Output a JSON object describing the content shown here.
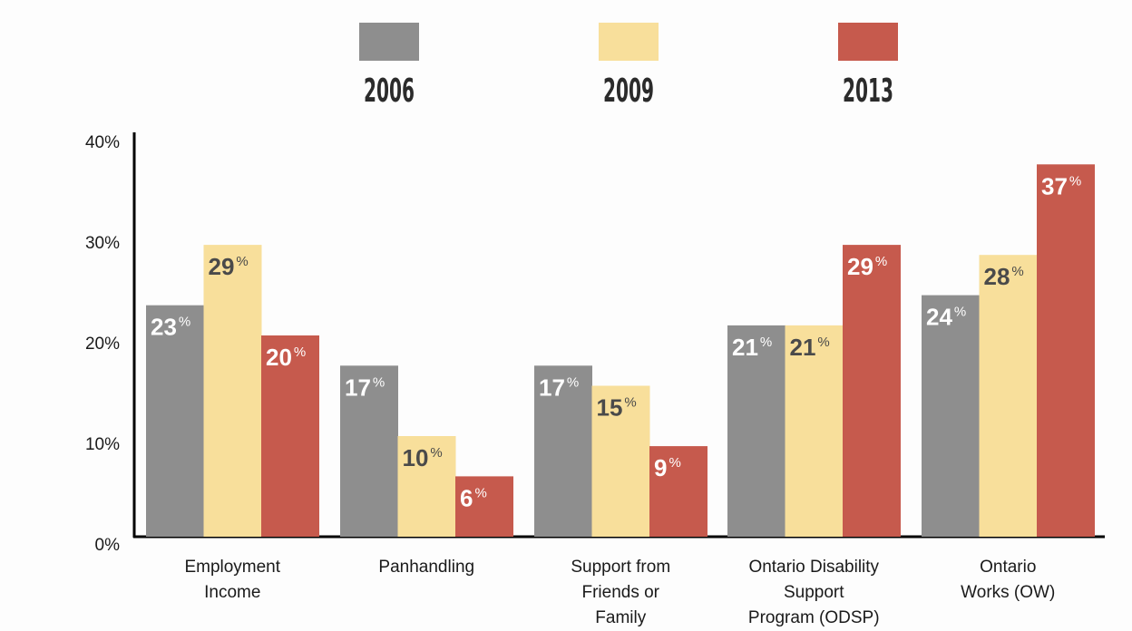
{
  "chart_data": {
    "type": "bar",
    "categories": [
      [
        "Employment",
        "Income"
      ],
      [
        "Panhandling"
      ],
      [
        "Support from",
        "Friends or",
        "Family"
      ],
      [
        "Ontario Disability",
        "Support",
        "Program (ODSP)"
      ],
      [
        "Ontario",
        "Works (OW)"
      ]
    ],
    "series": [
      {
        "name": "2006",
        "color": "#8e8e8e",
        "label_color": "#ffffff",
        "values": [
          23,
          17,
          17,
          21,
          24
        ]
      },
      {
        "name": "2009",
        "color": "#f8df9b",
        "label_color": "#4a4a4a",
        "values": [
          29,
          10,
          15,
          21,
          28
        ]
      },
      {
        "name": "2013",
        "color": "#c65a4d",
        "label_color": "#ffffff",
        "values": [
          20,
          6,
          9,
          29,
          37
        ]
      }
    ],
    "data_labels": [
      [
        "23",
        "17",
        "17",
        "21",
        "24"
      ],
      [
        "29",
        "10",
        "15",
        "21",
        "28"
      ],
      [
        "20",
        "6",
        "9",
        "29",
        "37"
      ]
    ],
    "value_suffix": "%",
    "y_ticks": [
      "0%",
      "10%",
      "20%",
      "30%",
      "40%"
    ],
    "ylim": [
      0,
      40
    ],
    "legend_position": "top",
    "grid": false
  }
}
